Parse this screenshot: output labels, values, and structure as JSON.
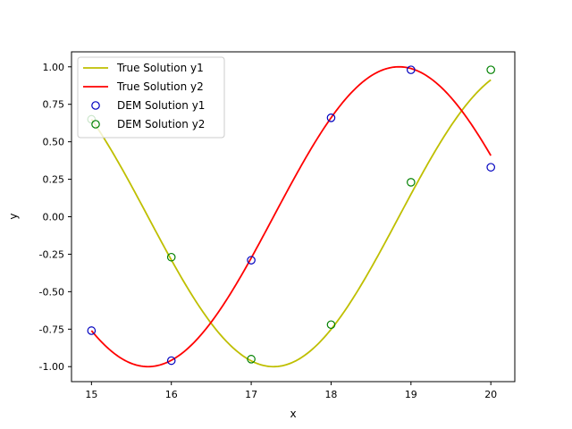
{
  "chart_data": {
    "type": "line",
    "title": "",
    "xlabel": "x",
    "ylabel": "y",
    "xlim": [
      14.75,
      20.3
    ],
    "ylim": [
      -1.1,
      1.1
    ],
    "x_ticks": [
      "15",
      "16",
      "17",
      "18",
      "19",
      "20"
    ],
    "y_ticks": [
      "-1.00",
      "-0.75",
      "-0.50",
      "-0.25",
      "0.00",
      "0.25",
      "0.50",
      "0.75",
      "1.00"
    ],
    "legend_position": "upper-left",
    "grid": false,
    "series": [
      {
        "name": "True Solution y1",
        "kind": "line",
        "color": "#bfbf00",
        "function": "sin",
        "x_range": [
          15,
          20
        ]
      },
      {
        "name": "True Solution y2",
        "kind": "line",
        "color": "#ff0000",
        "function": "cos",
        "x_range": [
          15,
          20
        ]
      },
      {
        "name": "DEM Solution y1",
        "kind": "scatter",
        "color": "#0000bf",
        "x": [
          15,
          16,
          17,
          18,
          19,
          20
        ],
        "y": [
          -0.76,
          -0.96,
          -0.29,
          0.66,
          0.98,
          0.33
        ]
      },
      {
        "name": "DEM Solution y2",
        "kind": "scatter",
        "color": "#008000",
        "x": [
          15,
          16,
          17,
          18,
          19,
          20
        ],
        "y": [
          0.65,
          -0.27,
          -0.95,
          -0.72,
          0.23,
          0.98
        ]
      }
    ]
  }
}
